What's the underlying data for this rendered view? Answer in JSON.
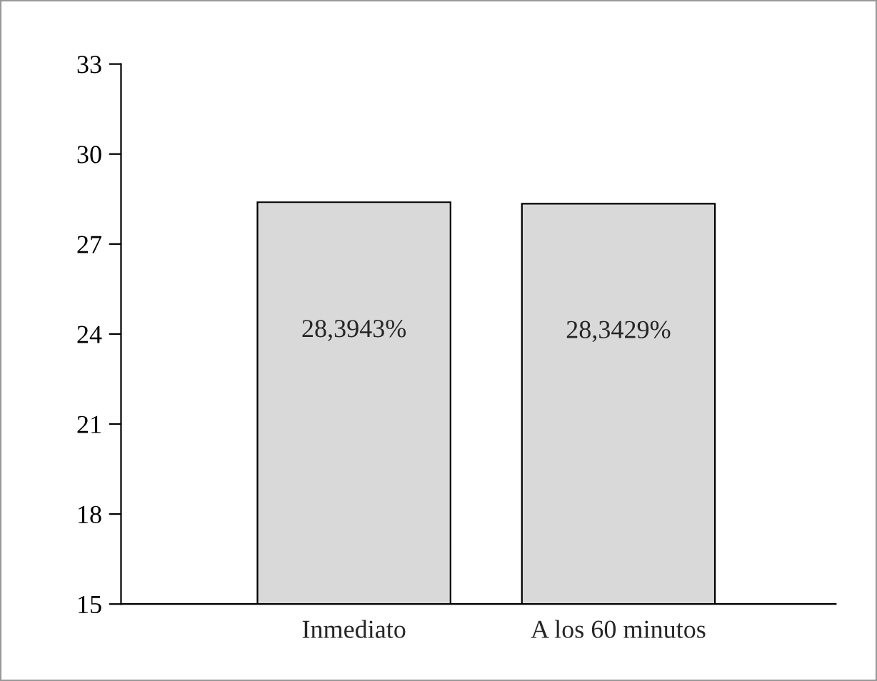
{
  "chart_data": {
    "type": "bar",
    "categories": [
      "Inmediato",
      "A los 60 minutos"
    ],
    "values": [
      28.3943,
      28.3429
    ],
    "value_labels": [
      "28,3943%",
      "28,3429%"
    ],
    "color": "#d9d9d9",
    "ylim": [
      15,
      33
    ],
    "yticks": [
      15,
      18,
      21,
      24,
      27,
      30,
      33
    ],
    "grid": false,
    "legend": false
  }
}
